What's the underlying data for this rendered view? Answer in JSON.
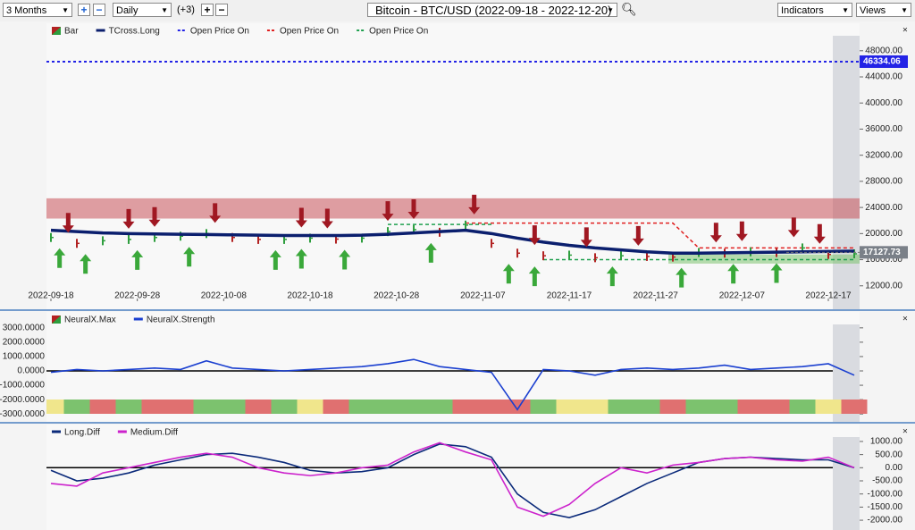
{
  "toolbar": {
    "range": "3 Months",
    "interval": "Daily",
    "extra": "(+3)",
    "symbol": "Bitcoin - BTC/USD (2022-09-18 - 2022-12-20)",
    "indicators": "Indicators",
    "views": "Views"
  },
  "chart_data": [
    {
      "type": "bar",
      "x": [
        "2022-09-18",
        "2022-09-21",
        "2022-09-24",
        "2022-09-27",
        "2022-09-30",
        "2022-10-03",
        "2022-10-06",
        "2022-10-09",
        "2022-10-12",
        "2022-10-15",
        "2022-10-18",
        "2022-10-21",
        "2022-10-24",
        "2022-10-27",
        "2022-10-30",
        "2022-11-02",
        "2022-11-05",
        "2022-11-08",
        "2022-11-11",
        "2022-11-14",
        "2022-11-17",
        "2022-11-20",
        "2022-11-23",
        "2022-11-26",
        "2022-11-29",
        "2022-12-02",
        "2022-12-05",
        "2022-12-08",
        "2022-12-11",
        "2022-12-14",
        "2022-12-17",
        "2022-12-20"
      ],
      "xlim": [
        "2022-09-18",
        "2022-12-20"
      ],
      "xticks": [
        "2022-09-18",
        "2022-09-28",
        "2022-10-08",
        "2022-10-18",
        "2022-10-28",
        "2022-11-07",
        "2022-11-17",
        "2022-11-27",
        "2022-12-07",
        "2022-12-17"
      ],
      "ylim": [
        10600,
        50300
      ],
      "yticks": [
        {
          "value": 48000,
          "label": "48000.00"
        },
        {
          "value": 44000,
          "label": "44000.00"
        },
        {
          "value": 40000,
          "label": "40000.00"
        },
        {
          "value": 36000,
          "label": "36000.00"
        },
        {
          "value": 32000,
          "label": "32000.00"
        },
        {
          "value": 28000,
          "label": "28000.00"
        },
        {
          "value": 24000,
          "label": "24000.00"
        },
        {
          "value": 20000,
          "label": "20000.00"
        },
        {
          "value": 16000,
          "label": "16000.00"
        },
        {
          "value": 12000,
          "label": "12000.00"
        }
      ],
      "series": [
        {
          "name": "Bar",
          "color_up": "#2e9e3e",
          "color_down": "#b22222",
          "values": [
            19400,
            18500,
            18900,
            19100,
            19400,
            19600,
            20000,
            19400,
            19100,
            19100,
            19300,
            19150,
            19300,
            20300,
            20600,
            20200,
            21300,
            18500,
            17000,
            16600,
            16700,
            16300,
            16600,
            16500,
            16400,
            17100,
            17000,
            17200,
            17100,
            17800,
            16800,
            16900
          ]
        },
        {
          "name": "TCross.Long",
          "color": "#0b1f6e",
          "values": [
            20500,
            20300,
            20100,
            20000,
            19950,
            19900,
            19850,
            19800,
            19750,
            19700,
            19700,
            19700,
            19750,
            19900,
            20100,
            20300,
            20500,
            20000,
            19300,
            18700,
            18200,
            17800,
            17500,
            17200,
            17000,
            17000,
            17050,
            17100,
            17150,
            17200,
            17250,
            17300
          ]
        },
        {
          "name": "Open Price On",
          "color": "#2323e6",
          "level": 46334.06
        },
        {
          "name": "Open Price On",
          "color": "#e02020",
          "values": [
            null,
            null,
            null,
            null,
            null,
            null,
            null,
            null,
            null,
            null,
            null,
            null,
            null,
            null,
            null,
            null,
            21600,
            21600,
            21600,
            21600,
            21600,
            21600,
            21600,
            21600,
            21600,
            17800,
            17800,
            17800,
            17800,
            17800,
            17800,
            17800
          ]
        },
        {
          "name": "Open Price On",
          "color": "#20a050",
          "values": [
            null,
            null,
            null,
            null,
            null,
            null,
            null,
            null,
            null,
            null,
            null,
            null,
            null,
            21400,
            21400,
            21400,
            21400,
            21400,
            null,
            16000,
            16000,
            16000,
            16000,
            16000,
            16000,
            16000,
            16000,
            16000,
            16000,
            16000,
            16000,
            16000
          ]
        }
      ],
      "last_price": 17127.73,
      "zones": [
        {
          "from": 22300,
          "to": 25400,
          "color": "#c9525a",
          "start": "2022-09-18"
        },
        {
          "from": 15400,
          "to": 16800,
          "color": "#7cc26e",
          "start": "2022-11-29"
        }
      ],
      "down_signals": [
        "2022-09-20",
        "2022-09-27",
        "2022-09-30",
        "2022-10-07",
        "2022-10-17",
        "2022-10-20",
        "2022-10-27",
        "2022-10-30",
        "2022-11-06",
        "2022-11-13",
        "2022-11-19",
        "2022-11-25",
        "2022-12-04",
        "2022-12-07",
        "2022-12-13",
        "2022-12-16"
      ],
      "up_signals": [
        "2022-09-19",
        "2022-09-22",
        "2022-09-28",
        "2022-10-04",
        "2022-10-14",
        "2022-10-17",
        "2022-10-22",
        "2022-11-01",
        "2022-11-10",
        "2022-11-13",
        "2022-11-22",
        "2022-11-30",
        "2022-12-06",
        "2022-12-11"
      ]
    },
    {
      "type": "line",
      "x": [
        "2022-09-18",
        "2022-09-21",
        "2022-09-24",
        "2022-09-27",
        "2022-09-30",
        "2022-10-03",
        "2022-10-06",
        "2022-10-09",
        "2022-10-12",
        "2022-10-15",
        "2022-10-18",
        "2022-10-21",
        "2022-10-24",
        "2022-10-27",
        "2022-10-30",
        "2022-11-02",
        "2022-11-05",
        "2022-11-08",
        "2022-11-11",
        "2022-11-14",
        "2022-11-17",
        "2022-11-20",
        "2022-11-23",
        "2022-11-26",
        "2022-11-29",
        "2022-12-02",
        "2022-12-05",
        "2022-12-08",
        "2022-12-11",
        "2022-12-14",
        "2022-12-17",
        "2022-12-20"
      ],
      "xlim": [
        "2022-09-18",
        "2022-12-20"
      ],
      "ylim": [
        -3300,
        3300
      ],
      "yticks": [
        {
          "value": 3000,
          "label": "3000.0000"
        },
        {
          "value": 2000,
          "label": "2000.0000"
        },
        {
          "value": 1000,
          "label": "1000.0000"
        },
        {
          "value": 0,
          "label": "0.0000"
        },
        {
          "value": -1000,
          "label": "-1000.0000"
        },
        {
          "value": -2000,
          "label": "-2000.0000"
        },
        {
          "value": -3000,
          "label": "-3000.0000"
        }
      ],
      "series": [
        {
          "name": "NeuralX.Max",
          "colors": [
            "#f0e68c",
            "#7cc26e",
            "#e07070",
            "#7cc26e",
            "#e07070",
            "#e07070",
            "#7cc26e",
            "#7cc26e",
            "#e07070",
            "#7cc26e",
            "#f0e68c",
            "#e07070",
            "#7cc26e",
            "#7cc26e",
            "#7cc26e",
            "#7cc26e",
            "#e07070",
            "#e07070",
            "#e07070",
            "#7cc26e",
            "#f0e68c",
            "#f0e68c",
            "#7cc26e",
            "#7cc26e",
            "#e07070",
            "#7cc26e",
            "#7cc26e",
            "#e07070",
            "#e07070",
            "#7cc26e",
            "#f0e68c",
            "#e07070"
          ]
        },
        {
          "name": "NeuralX.Strength",
          "color": "#1a3fd0",
          "values": [
            -100,
            100,
            0,
            100,
            200,
            100,
            700,
            200,
            100,
            0,
            100,
            200,
            300,
            500,
            800,
            300,
            100,
            -100,
            -2700,
            100,
            0,
            -300,
            100,
            200,
            100,
            200,
            400,
            100,
            200,
            300,
            500,
            -300
          ]
        }
      ]
    },
    {
      "type": "line",
      "x": [
        "2022-09-18",
        "2022-09-21",
        "2022-09-24",
        "2022-09-27",
        "2022-09-30",
        "2022-10-03",
        "2022-10-06",
        "2022-10-09",
        "2022-10-12",
        "2022-10-15",
        "2022-10-18",
        "2022-10-21",
        "2022-10-24",
        "2022-10-27",
        "2022-10-30",
        "2022-11-02",
        "2022-11-05",
        "2022-11-08",
        "2022-11-11",
        "2022-11-14",
        "2022-11-17",
        "2022-11-20",
        "2022-11-23",
        "2022-11-26",
        "2022-11-29",
        "2022-12-02",
        "2022-12-05",
        "2022-12-08",
        "2022-12-11",
        "2022-12-14",
        "2022-12-17",
        "2022-12-20"
      ],
      "xlim": [
        "2022-09-18",
        "2022-12-20"
      ],
      "ylim": [
        -2270,
        1270
      ],
      "yticks": [
        {
          "value": 1000,
          "label": "1000.00"
        },
        {
          "value": 500,
          "label": "500.00"
        },
        {
          "value": 0,
          "label": "0.00"
        },
        {
          "value": -500,
          "label": "-500.00"
        },
        {
          "value": -1000,
          "label": "-1000.00"
        },
        {
          "value": -1500,
          "label": "-1500.00"
        },
        {
          "value": -2000,
          "label": "-2000.00"
        }
      ],
      "series": [
        {
          "name": "Long.Diff",
          "color": "#0b2a7a",
          "values": [
            -100,
            -500,
            -400,
            -200,
            100,
            300,
            500,
            550,
            400,
            200,
            -100,
            -200,
            -150,
            0,
            500,
            900,
            800,
            400,
            -1000,
            -1700,
            -1900,
            -1600,
            -1100,
            -600,
            -200,
            200,
            350,
            400,
            350,
            300,
            300,
            0
          ]
        },
        {
          "name": "Medium.Diff",
          "color": "#cc22cc",
          "values": [
            -600,
            -700,
            -200,
            0,
            200,
            400,
            550,
            400,
            0,
            -200,
            -300,
            -200,
            0,
            100,
            600,
            950,
            600,
            300,
            -1500,
            -1850,
            -1400,
            -600,
            0,
            -200,
            100,
            200,
            350,
            400,
            300,
            250,
            400,
            0
          ]
        }
      ]
    }
  ]
}
